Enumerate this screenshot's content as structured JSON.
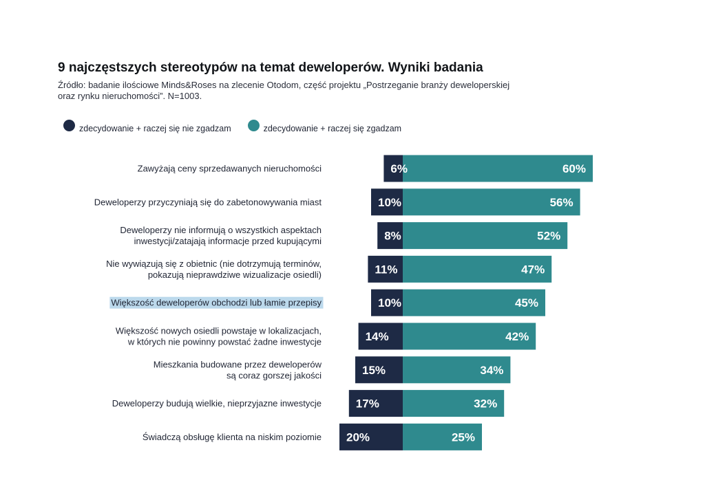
{
  "chart_data": {
    "type": "bar",
    "title": "9 najczęstszych stereotypów na temat deweloperów. Wyniki badania",
    "subtitle_line1": "Źródło: badanie ilościowe Minds&Roses na zlecenie Otodom, część projektu „Postrzeganie branży deweloperskiej",
    "subtitle_line2": "oraz rynku nieruchomości”. N=1003.",
    "legend": [
      {
        "name": "zdecydowanie + raczej się nie zgadzam",
        "color": "#1e2a45"
      },
      {
        "name": "zdecydowanie + raczej się zgadzam",
        "color": "#2f8a8e"
      }
    ],
    "categories": [
      {
        "lines": [
          "Zawyżają ceny sprzedawanych nieruchomości"
        ],
        "highlighted": false
      },
      {
        "lines": [
          "Deweloperzy przyczyniają się do zabetonowywania miast"
        ],
        "highlighted": false
      },
      {
        "lines": [
          "Deweloperzy nie informują o wszystkich aspektach",
          "inwestycji/zatajają informacje przed kupującymi"
        ],
        "highlighted": false
      },
      {
        "lines": [
          "Nie wywiązują się z obietnic (nie dotrzymują terminów,",
          "pokazują nieprawdziwe wizualizacje osiedli)"
        ],
        "highlighted": false
      },
      {
        "lines": [
          "Większość deweloperów obchodzi lub łamie przepisy"
        ],
        "highlighted": true
      },
      {
        "lines": [
          "Większość nowych osiedli powstaje w lokalizacjach,",
          "w których nie powinny powstać żadne inwestycje"
        ],
        "highlighted": false
      },
      {
        "lines": [
          "Mieszkania budowane przez deweloperów",
          "są coraz gorszej jakości"
        ],
        "highlighted": false
      },
      {
        "lines": [
          "Deweloperzy budują wielkie, nieprzyjazne inwestycje"
        ],
        "highlighted": false
      },
      {
        "lines": [
          "Świadczą obsługę klienta na niskim poziomie"
        ],
        "highlighted": false
      }
    ],
    "series": [
      {
        "name": "zdecydowanie + raczej się nie zgadzam",
        "values": [
          6,
          10,
          8,
          11,
          10,
          14,
          15,
          17,
          20
        ],
        "labels": [
          "6%",
          "10%",
          "8%",
          "11%",
          "10%",
          "14%",
          "15%",
          "17%",
          "20%"
        ]
      },
      {
        "name": "zdecydowanie + raczej się zgadzam",
        "values": [
          60,
          56,
          52,
          47,
          45,
          42,
          34,
          32,
          25
        ],
        "labels": [
          "60%",
          "56%",
          "52%",
          "47%",
          "45%",
          "42%",
          "34%",
          "32%",
          "25%"
        ]
      }
    ],
    "colors": {
      "disagree": "#1e2a45",
      "agree": "#2f8a8e",
      "highlight": "#bcd9ec"
    },
    "grid": false,
    "legend_position": "top-left"
  }
}
